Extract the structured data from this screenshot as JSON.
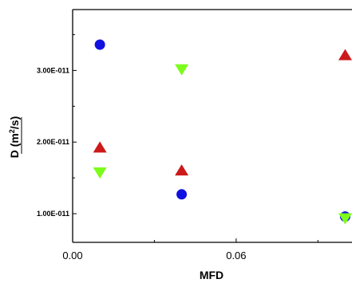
{
  "chart_data": {
    "type": "scatter",
    "xlabel": "MFD",
    "ylabel": "D (m²/s)",
    "ylabel_parts": {
      "lead": "D (",
      "unit": "m",
      "exp": "2",
      "tail": "/s)"
    },
    "xlim": [
      0.0,
      0.1025
    ],
    "ylim": [
      6e-12,
      3.85e-11
    ],
    "x_ticks": [
      {
        "value": 0.0,
        "label": "0.00"
      },
      {
        "value": 0.06,
        "label": "0.06"
      }
    ],
    "x_minor_ticks": [
      0.03,
      0.09
    ],
    "y_ticks": [
      {
        "value": 1e-11,
        "label": "1.00E-011"
      },
      {
        "value": 2e-11,
        "label": "2.00E-011"
      },
      {
        "value": 3e-11,
        "label": "3.00E-011"
      }
    ],
    "y_minor_ticks": [
      1.5e-11,
      2.5e-11,
      3.5e-11
    ],
    "grid": false,
    "series": [
      {
        "marker": "circle",
        "color": "#1010e0",
        "points": [
          {
            "x": 0.01,
            "y": 3.36e-11
          },
          {
            "x": 0.04,
            "y": 1.27e-11
          },
          {
            "x": 0.1,
            "y": 9.6e-12
          }
        ]
      },
      {
        "marker": "triangle-up",
        "color": "#cc1a1a",
        "points": [
          {
            "x": 0.01,
            "y": 1.92e-11
          },
          {
            "x": 0.04,
            "y": 1.6e-11
          },
          {
            "x": 0.1,
            "y": 3.21e-11
          }
        ]
      },
      {
        "marker": "triangle-down",
        "color": "#7cfc1a",
        "points": [
          {
            "x": 0.01,
            "y": 1.58e-11
          },
          {
            "x": 0.04,
            "y": 3.02e-11
          },
          {
            "x": 0.1,
            "y": 9.4e-12
          }
        ]
      }
    ]
  }
}
